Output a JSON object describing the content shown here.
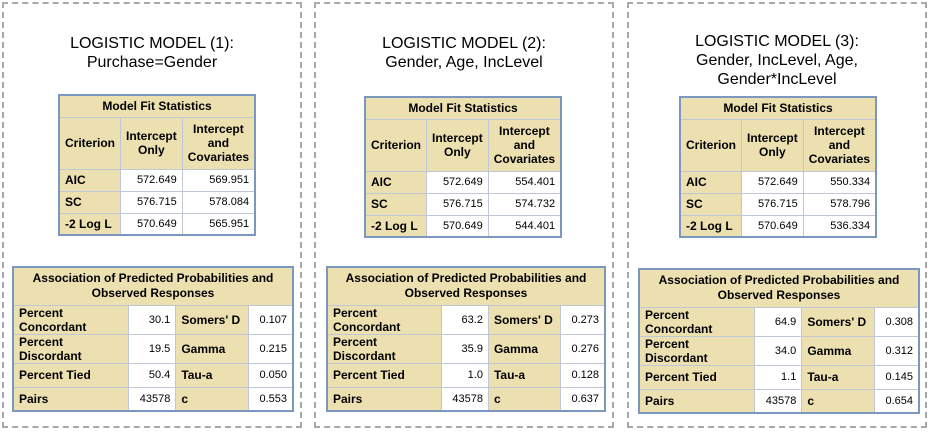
{
  "panels": [
    {
      "title": [
        "LOGISTIC  MODEL (1):",
        "Purchase=Gender"
      ],
      "fit": {
        "caption": "Model Fit Statistics",
        "headers": [
          "Criterion",
          "Intercept Only",
          "Intercept and Covariates"
        ],
        "rows": [
          [
            "AIC",
            "572.649",
            "569.951"
          ],
          [
            "SC",
            "576.715",
            "578.084"
          ],
          [
            "-2 Log L",
            "570.649",
            "565.951"
          ]
        ]
      },
      "assoc": {
        "caption": "Association of Predicted Probabilities and Observed Responses",
        "rows": [
          [
            "Percent Concordant",
            "30.1",
            "Somers' D",
            "0.107"
          ],
          [
            "Percent Discordant",
            "19.5",
            "Gamma",
            "0.215"
          ],
          [
            "Percent Tied",
            "50.4",
            "Tau-a",
            "0.050"
          ],
          [
            "Pairs",
            "43578",
            "c",
            "0.553"
          ]
        ]
      }
    },
    {
      "title": [
        "LOGISTIC  MODEL (2):",
        "Gender, Age, IncLevel"
      ],
      "fit": {
        "caption": "Model Fit Statistics",
        "headers": [
          "Criterion",
          "Intercept Only",
          "Intercept and Covariates"
        ],
        "rows": [
          [
            "AIC",
            "572.649",
            "554.401"
          ],
          [
            "SC",
            "576.715",
            "574.732"
          ],
          [
            "-2 Log L",
            "570.649",
            "544.401"
          ]
        ]
      },
      "assoc": {
        "caption": "Association of Predicted Probabilities and Observed Responses",
        "rows": [
          [
            "Percent Concordant",
            "63.2",
            "Somers' D",
            "0.273"
          ],
          [
            "Percent Discordant",
            "35.9",
            "Gamma",
            "0.276"
          ],
          [
            "Percent Tied",
            "1.0",
            "Tau-a",
            "0.128"
          ],
          [
            "Pairs",
            "43578",
            "c",
            "0.637"
          ]
        ]
      }
    },
    {
      "title": [
        "LOGISTIC  MODEL (3):",
        "Gender, IncLevel,  Age,",
        "Gender*IncLevel"
      ],
      "fit": {
        "caption": "Model Fit Statistics",
        "headers": [
          "Criterion",
          "Intercept Only",
          "Intercept and Covariates"
        ],
        "rows": [
          [
            "AIC",
            "572.649",
            "550.334"
          ],
          [
            "SC",
            "576.715",
            "578.796"
          ],
          [
            "-2 Log L",
            "570.649",
            "536.334"
          ]
        ]
      },
      "assoc": {
        "caption": "Association of Predicted Probabilities and Observed Responses",
        "rows": [
          [
            "Percent Concordant",
            "64.9",
            "Somers' D",
            "0.308"
          ],
          [
            "Percent Discordant",
            "34.0",
            "Gamma",
            "0.312"
          ],
          [
            "Percent Tied",
            "1.1",
            "Tau-a",
            "0.145"
          ],
          [
            "Pairs",
            "43578",
            "c",
            "0.654"
          ]
        ]
      }
    }
  ]
}
